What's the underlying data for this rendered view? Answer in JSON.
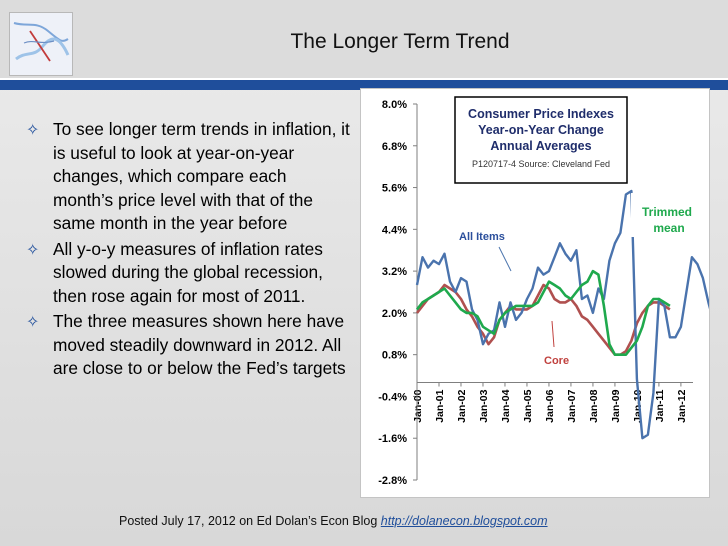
{
  "slide": {
    "title": "The Longer Term Trend",
    "bullets": [
      "To see longer term trends in inflation, it is useful to look at year-on-year changes, which compare each month’s price level with that of the same month in the year before",
      "All y-o-y measures of inflation rates slowed during the global recession, then rose again for most of 2011.",
      "The three measures shown here have moved steadily downward in 2012. All are close to or below the Fed’s targets"
    ],
    "bullet_icon": "diamond-star-icon",
    "footer_text": "Posted July 17, 2012 on Ed Dolan’s Econ Blog",
    "footer_link": "http://dolanecon.blogspot.com"
  },
  "colors": {
    "accent_blue": "#1f4e9b",
    "all_items": "#4a73ad",
    "trimmed_mean": "#1fa94d",
    "core": "#b0504f",
    "label_blue": "#2b4f9c",
    "label_green": "#1fa94d",
    "label_red": "#c0413e"
  },
  "chart_data": {
    "type": "line",
    "title": "Consumer Price Indexes",
    "subtitle": "Year-on-Year Change",
    "subtitle2": "Annual Averages",
    "source_note": "P120717-4 Source: Cleveland Fed",
    "xlabel": "",
    "ylabel": "",
    "ylim": [
      -2.8,
      8.0
    ],
    "y_ticks": [
      "8.0%",
      "6.8%",
      "5.6%",
      "4.4%",
      "3.2%",
      "2.0%",
      "0.8%",
      "-0.4%",
      "-1.6%",
      "-2.8%"
    ],
    "x_ticks": [
      "Jan-00",
      "Jan-01",
      "Jan-02",
      "Jan-03",
      "Jan-04",
      "Jan-05",
      "Jan-06",
      "Jan-07",
      "Jan-08",
      "Jan-09",
      "Jan-10",
      "Jan-11",
      "Jan-12"
    ],
    "grid": false,
    "annotations": [
      {
        "text": "All Items",
        "series": "All Items"
      },
      {
        "text": "Trimmed",
        "series": "Trimmed mean"
      },
      {
        "text": "mean",
        "series": "Trimmed mean"
      },
      {
        "text": "Core",
        "series": "Core"
      }
    ],
    "x_start": 2000.0,
    "x_step": 0.25,
    "series": [
      {
        "name": "All Items",
        "values": [
          2.8,
          3.6,
          3.3,
          3.5,
          3.4,
          3.7,
          2.9,
          2.6,
          3.0,
          2.9,
          2.1,
          1.8,
          1.1,
          1.4,
          1.5,
          2.3,
          1.6,
          2.3,
          1.8,
          2.0,
          2.4,
          2.7,
          3.3,
          3.1,
          3.2,
          3.6,
          4.0,
          3.7,
          3.5,
          3.8,
          2.4,
          2.5,
          2.0,
          2.7,
          2.4,
          3.5,
          4.0,
          4.3,
          5.4,
          5.5,
          0.1,
          -1.6,
          -1.5,
          -0.3,
          2.4,
          2.2,
          1.3,
          1.3,
          1.6,
          2.6,
          3.6,
          3.4,
          3.0,
          2.3,
          1.7
        ]
      },
      {
        "name": "Trimmed mean",
        "values": [
          2.1,
          2.3,
          2.4,
          2.5,
          2.6,
          2.7,
          2.5,
          2.3,
          2.1,
          2.0,
          2.0,
          1.9,
          1.6,
          1.5,
          1.4,
          1.8,
          2.0,
          2.1,
          2.2,
          2.2,
          2.2,
          2.2,
          2.3,
          2.6,
          2.9,
          2.8,
          2.7,
          2.5,
          2.4,
          2.6,
          2.8,
          2.9,
          3.2,
          3.1,
          2.2,
          1.1,
          0.8,
          0.8,
          0.8,
          1.0,
          1.2,
          1.6,
          2.2,
          2.4,
          2.4,
          2.3,
          2.2
        ]
      },
      {
        "name": "Core",
        "values": [
          2.0,
          2.2,
          2.4,
          2.5,
          2.6,
          2.8,
          2.7,
          2.6,
          2.4,
          2.1,
          1.9,
          1.6,
          1.4,
          1.1,
          1.3,
          1.8,
          2.0,
          2.2,
          2.1,
          2.1,
          2.1,
          2.2,
          2.5,
          2.8,
          2.7,
          2.4,
          2.3,
          2.3,
          2.4,
          2.2,
          1.9,
          1.8,
          1.6,
          1.4,
          1.2,
          1.0,
          0.8,
          0.8,
          0.9,
          1.2,
          1.7,
          2.0,
          2.2,
          2.3,
          2.3,
          2.2,
          2.1
        ]
      }
    ]
  }
}
